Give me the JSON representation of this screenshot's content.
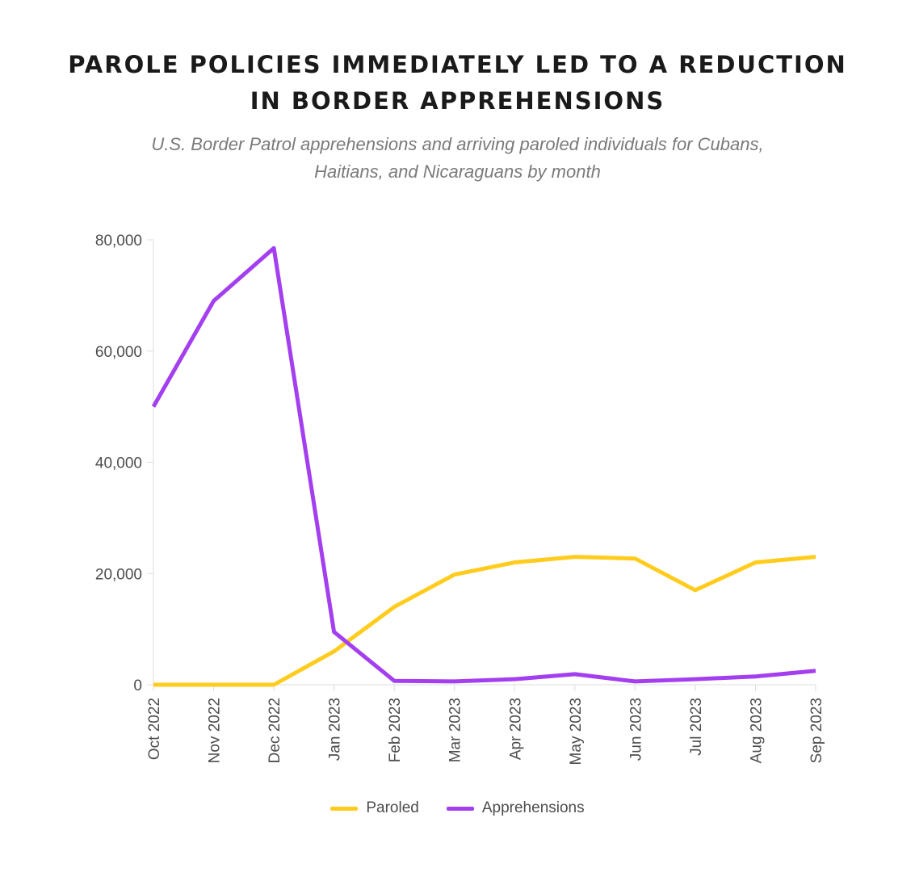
{
  "title_line1": "PAROLE POLICIES IMMEDIATELY LED TO A REDUCTION",
  "title_line2": "IN BORDER APPREHENSIONS",
  "subtitle_line1": "U.S. Border Patrol apprehensions and arriving paroled individuals for Cubans,",
  "subtitle_line2": "Haitians, and Nicaraguans by month",
  "chart_data": {
    "type": "line",
    "categories": [
      "Oct 2022",
      "Nov 2022",
      "Dec 2022",
      "Jan 2023",
      "Feb 2023",
      "Mar 2023",
      "Apr 2023",
      "May 2023",
      "Jun 2023",
      "Jul 2023",
      "Aug 2023",
      "Sep 2023"
    ],
    "series": [
      {
        "name": "Paroled",
        "color": "#FFCC1E",
        "values": [
          0,
          0,
          0,
          6000,
          14000,
          19800,
          22000,
          23000,
          22700,
          17000,
          22000,
          23000
        ]
      },
      {
        "name": "Apprehensions",
        "color": "#A43FF0",
        "values": [
          50000,
          69000,
          78500,
          9500,
          700,
          600,
          1000,
          1900,
          600,
          1000,
          1500,
          2500
        ]
      }
    ],
    "yticks": [
      0,
      20000,
      40000,
      60000,
      80000
    ],
    "ytick_labels": [
      "0",
      "20,000",
      "40,000",
      "60,000",
      "80,000"
    ],
    "ylim": [
      0,
      80000
    ],
    "grid": false,
    "legend_position": "bottom"
  }
}
